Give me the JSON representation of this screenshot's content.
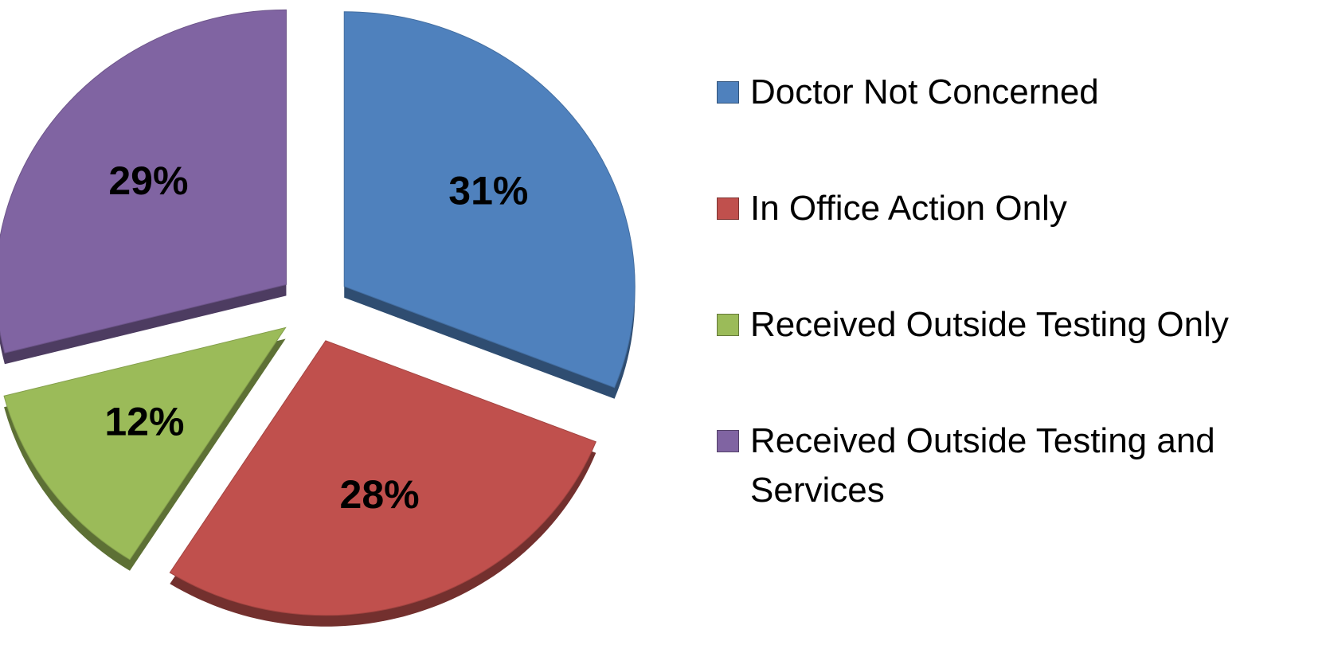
{
  "chart_data": {
    "type": "pie",
    "categories": [
      "Doctor Not Concerned",
      "In Office Action Only",
      "Received Outside Testing Only",
      "Received Outside Testing and Services"
    ],
    "values": [
      31,
      28,
      12,
      29
    ],
    "value_labels": [
      "31%",
      "28%",
      "12%",
      "29%"
    ],
    "colors": [
      "#4f81bd",
      "#c0504d",
      "#9bbb59",
      "#8064a2"
    ],
    "legend": "right"
  }
}
